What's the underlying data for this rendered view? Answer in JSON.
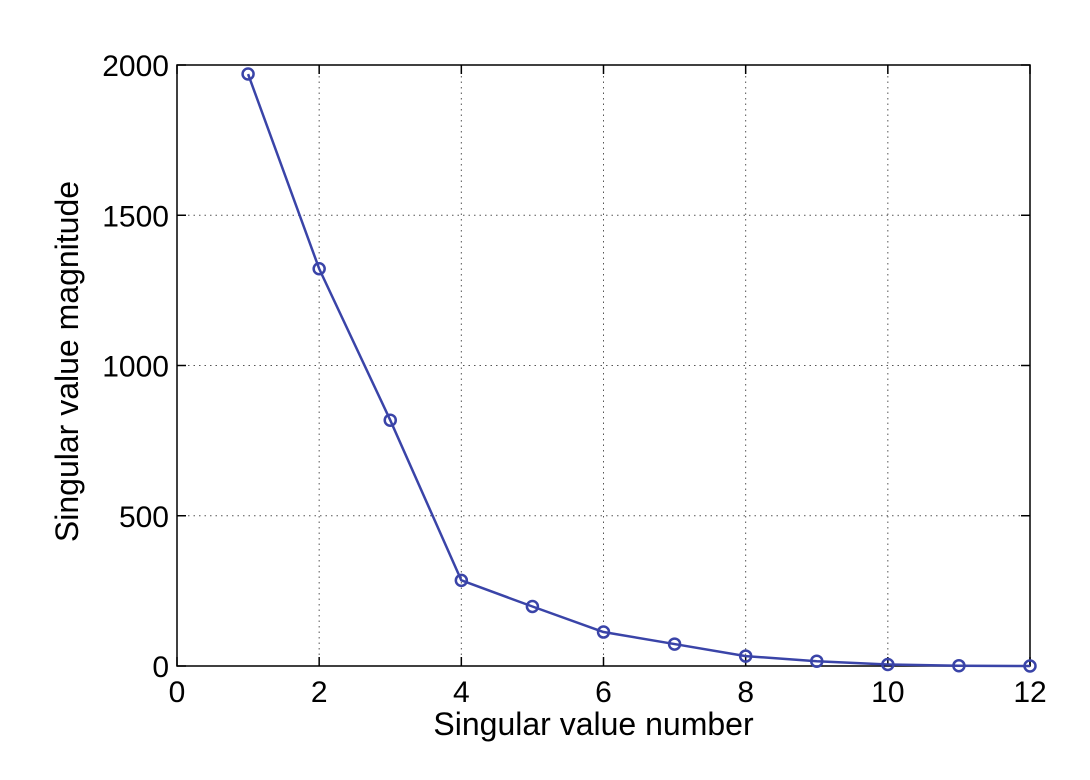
{
  "chart_data": {
    "type": "line",
    "title": "",
    "xlabel": "Singular value number",
    "ylabel": "Singular value magnitude",
    "xlim": [
      0,
      12
    ],
    "ylim": [
      0,
      2000
    ],
    "xticks": [
      0,
      2,
      4,
      6,
      8,
      10,
      12
    ],
    "yticks": [
      0,
      500,
      1000,
      1500,
      2000
    ],
    "grid": true,
    "marker": "circle",
    "series_color": "#3a44a8",
    "x": [
      1,
      2,
      3,
      4,
      5,
      6,
      7,
      8,
      9,
      10,
      11,
      12
    ],
    "series": [
      {
        "values": [
          1970,
          1322,
          818,
          285,
          198,
          113,
          73,
          33,
          16,
          5,
          1,
          0
        ]
      }
    ]
  }
}
